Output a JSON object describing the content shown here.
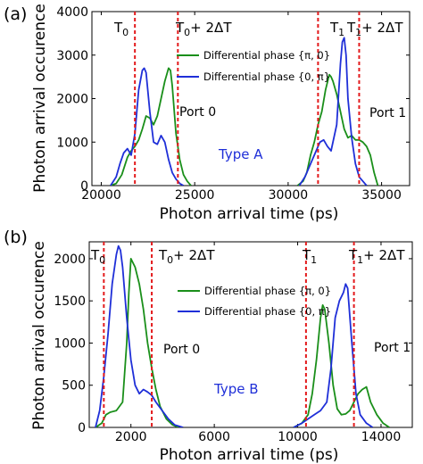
{
  "chart_data": [
    {
      "panel": "(a)",
      "type": "line",
      "xlabel": "Photon arrival time (ps)",
      "ylabel": "Photon arrival occurence",
      "xlim": [
        19500,
        36500
      ],
      "ylim": [
        0,
        4000
      ],
      "xticks": [
        20000,
        25000,
        30000,
        35000
      ],
      "yticks": [
        0,
        1000,
        2000,
        3000,
        4000
      ],
      "vlines": [
        {
          "x": 21800,
          "label": "T0",
          "label_base": "T",
          "label_sub": "0",
          "label_tail": ""
        },
        {
          "x": 24100,
          "label": "T0+ 2ΔT",
          "label_base": "T",
          "label_sub": "0",
          "label_tail": "+ 2ΔT"
        },
        {
          "x": 31600,
          "label": "T1",
          "label_base": "T",
          "label_sub": "1",
          "label_tail": ""
        },
        {
          "x": 33800,
          "label": "T1+ 2ΔT",
          "label_base": "T",
          "label_sub": "1",
          "label_tail": "+ 2ΔT"
        }
      ],
      "annotations": {
        "port0": "Port 0",
        "port1": "Port 1",
        "type": "Type A"
      },
      "series": [
        {
          "name": "Differential phase {π, 0}",
          "color": "#1a8f1a",
          "x": [
            20500,
            20800,
            21100,
            21400,
            21600,
            21800,
            22000,
            22200,
            22400,
            22600,
            22800,
            23000,
            23200,
            23400,
            23600,
            23700,
            23800,
            24000,
            24200,
            24400,
            24600,
            24800,
            30500,
            30800,
            31000,
            31200,
            31400,
            31600,
            31800,
            32000,
            32200,
            32300,
            32400,
            32600,
            32800,
            33000,
            33200,
            33400,
            33600,
            33800,
            34000,
            34200,
            34400,
            34600,
            34800
          ],
          "y": [
            0,
            50,
            250,
            650,
            800,
            900,
            1050,
            1300,
            1600,
            1550,
            1400,
            1600,
            2000,
            2400,
            2700,
            2650,
            2300,
            1200,
            600,
            250,
            100,
            0,
            0,
            100,
            300,
            700,
            1000,
            1400,
            1700,
            2200,
            2550,
            2500,
            2400,
            2100,
            1700,
            1300,
            1100,
            1150,
            1050,
            1050,
            1000,
            900,
            700,
            300,
            0
          ]
        },
        {
          "name": "Differential phase {0, π}",
          "color": "#1f2fd8",
          "x": [
            20500,
            20800,
            21000,
            21200,
            21400,
            21600,
            21800,
            22000,
            22200,
            22300,
            22400,
            22600,
            22800,
            23000,
            23200,
            23400,
            23600,
            23800,
            24000,
            24200,
            24400,
            30600,
            30900,
            31200,
            31500,
            31700,
            31900,
            32100,
            32300,
            32600,
            32800,
            32900,
            33000,
            33100,
            33200,
            33400,
            33600,
            33800,
            34000,
            34200
          ],
          "y": [
            0,
            200,
            500,
            750,
            850,
            700,
            1200,
            2200,
            2650,
            2700,
            2600,
            1700,
            1000,
            950,
            1150,
            1000,
            600,
            300,
            150,
            50,
            0,
            0,
            200,
            500,
            800,
            1000,
            1050,
            900,
            800,
            1400,
            2800,
            3300,
            3400,
            3000,
            2000,
            1100,
            500,
            200,
            100,
            0
          ]
        }
      ]
    },
    {
      "panel": "(b)",
      "type": "line",
      "xlabel": "Photon arrival time (ps)",
      "ylabel": "Photon arrival occurence",
      "xlim": [
        0,
        15500
      ],
      "ylim": [
        0,
        2200
      ],
      "xticks": [
        2000,
        6000,
        10000,
        14000
      ],
      "yticks": [
        0,
        500,
        1000,
        1500,
        2000
      ],
      "vlines": [
        {
          "x": 700,
          "label": "T0",
          "label_base": "T",
          "label_sub": "0",
          "label_tail": ""
        },
        {
          "x": 3000,
          "label": "T0+ 2ΔT",
          "label_base": "T",
          "label_sub": "0",
          "label_tail": "+ 2ΔT"
        },
        {
          "x": 10400,
          "label": "T1",
          "label_base": "T",
          "label_sub": "1",
          "label_tail": ""
        },
        {
          "x": 12700,
          "label": "T1+ 2ΔT",
          "label_base": "T",
          "label_sub": "1",
          "label_tail": "+ 2ΔT"
        }
      ],
      "annotations": {
        "port0": "Port 0",
        "port1": "Port 1",
        "type": "Type B"
      },
      "series": [
        {
          "name": "Differential phase {π, 0}",
          "color": "#1a8f1a",
          "x": [
            300,
            600,
            800,
            1000,
            1300,
            1600,
            1800,
            1900,
            2000,
            2200,
            2400,
            2600,
            2800,
            3000,
            3200,
            3400,
            3700,
            4000,
            4300,
            9800,
            10200,
            10500,
            10700,
            10900,
            11100,
            11200,
            11300,
            11500,
            11700,
            11900,
            12100,
            12300,
            12500,
            12700,
            12900,
            13100,
            13300,
            13500,
            13800,
            14100,
            14400
          ],
          "y": [
            0,
            50,
            150,
            180,
            200,
            300,
            1000,
            1600,
            2000,
            1900,
            1700,
            1400,
            1000,
            700,
            450,
            250,
            100,
            30,
            0,
            0,
            50,
            150,
            400,
            800,
            1300,
            1450,
            1400,
            1000,
            500,
            220,
            150,
            160,
            200,
            300,
            400,
            450,
            480,
            300,
            150,
            50,
            0
          ]
        },
        {
          "name": "Differential phase {0, π}",
          "color": "#1f2fd8",
          "x": [
            300,
            500,
            700,
            900,
            1100,
            1300,
            1400,
            1500,
            1600,
            1800,
            2000,
            2200,
            2400,
            2600,
            2800,
            3000,
            3200,
            3500,
            3800,
            4100,
            4500,
            9800,
            10200,
            10500,
            10800,
            11100,
            11400,
            11600,
            11800,
            12000,
            12200,
            12300,
            12400,
            12600,
            12800,
            13000,
            13300,
            13600
          ],
          "y": [
            0,
            200,
            600,
            1100,
            1700,
            2050,
            2150,
            2100,
            1900,
            1300,
            800,
            500,
            400,
            450,
            420,
            380,
            300,
            200,
            100,
            30,
            0,
            0,
            50,
            100,
            150,
            200,
            300,
            700,
            1300,
            1500,
            1600,
            1700,
            1650,
            1000,
            400,
            150,
            50,
            0
          ]
        }
      ]
    }
  ]
}
